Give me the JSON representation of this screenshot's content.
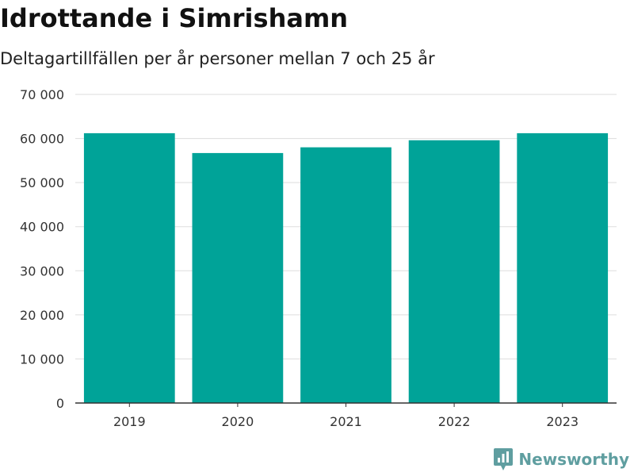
{
  "header": {
    "title": "Idrottande i Simrishamn",
    "subtitle": "Deltagartillfällen per år personer mellan 7 och 25 år"
  },
  "brand": {
    "name": "Newsworthy",
    "icon": "newsworthy-logo-icon",
    "color": "#5f9ea0"
  },
  "chart_data": {
    "type": "bar",
    "title": "Idrottande i Simrishamn",
    "subtitle": "Deltagartillfällen per år personer mellan 7 och 25 år",
    "xlabel": "",
    "ylabel": "",
    "categories": [
      "2019",
      "2020",
      "2021",
      "2022",
      "2023"
    ],
    "values": [
      61200,
      56700,
      58000,
      59600,
      61200
    ],
    "ylim": [
      0,
      70000
    ],
    "yticks": [
      0,
      10000,
      20000,
      30000,
      40000,
      50000,
      60000,
      70000
    ],
    "ytick_labels": [
      "0",
      "10 000",
      "20 000",
      "30 000",
      "40 000",
      "50 000",
      "60 000",
      "70 000"
    ],
    "grid": true,
    "bar_color": "#00a398",
    "grid_color": "#dddddd",
    "axis_color": "#333333"
  }
}
